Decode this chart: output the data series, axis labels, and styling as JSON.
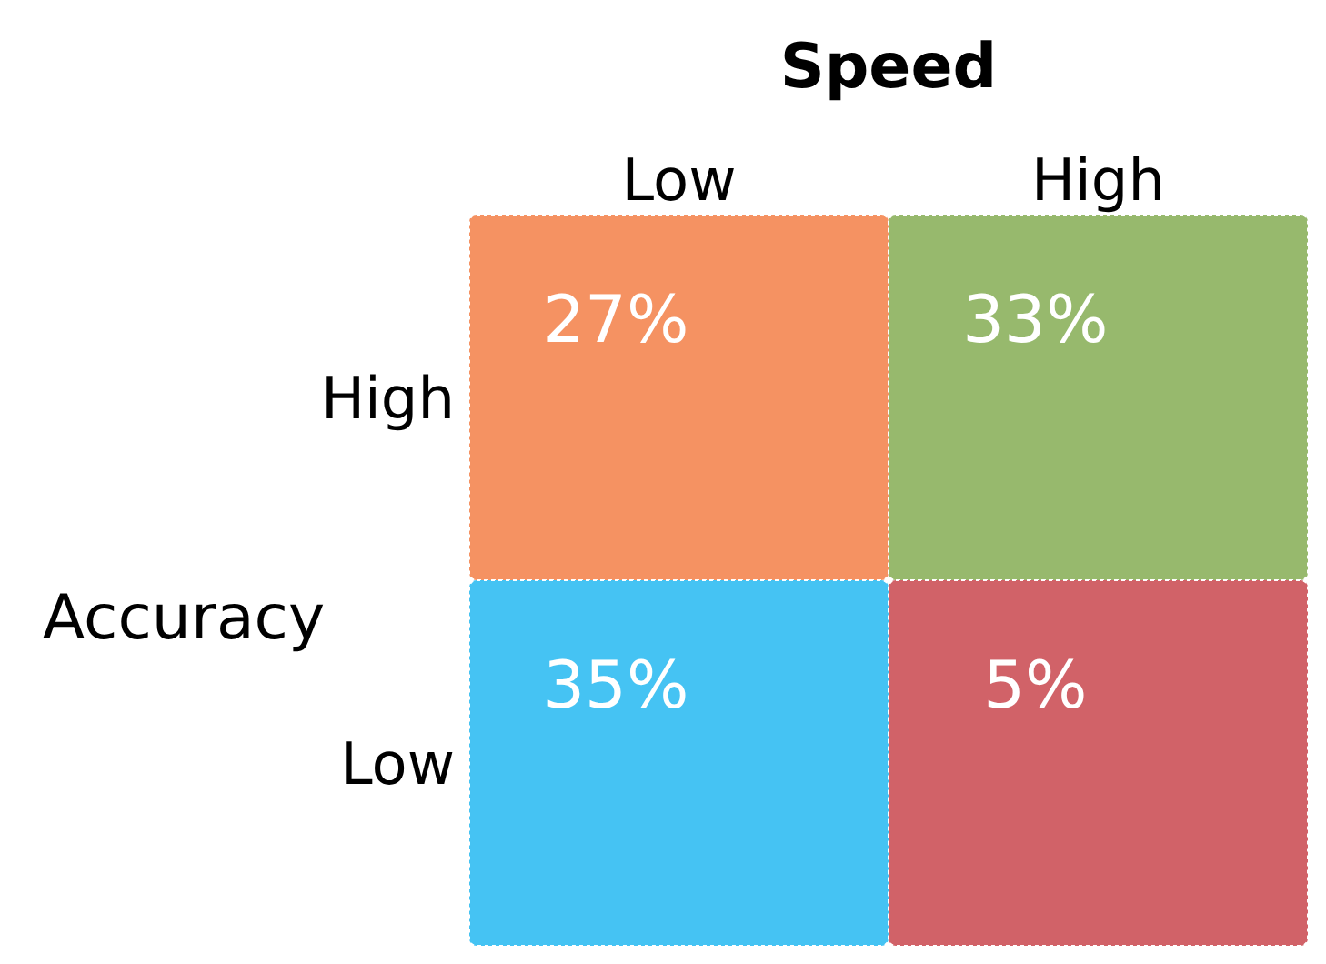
{
  "chart_data": {
    "type": "heatmap",
    "xlabel": "Speed",
    "ylabel": "Accuracy",
    "categories": [
      "Low",
      "High"
    ],
    "y_categories": [
      "High",
      "Low"
    ],
    "cells": [
      [
        27,
        33
      ],
      [
        35,
        5
      ]
    ],
    "cell_labels": [
      [
        "27%",
        "33%"
      ],
      [
        "35%",
        "5%"
      ]
    ],
    "colors": [
      "#f59262",
      "#97b96d",
      "#45c3f3",
      "#d16268"
    ]
  }
}
